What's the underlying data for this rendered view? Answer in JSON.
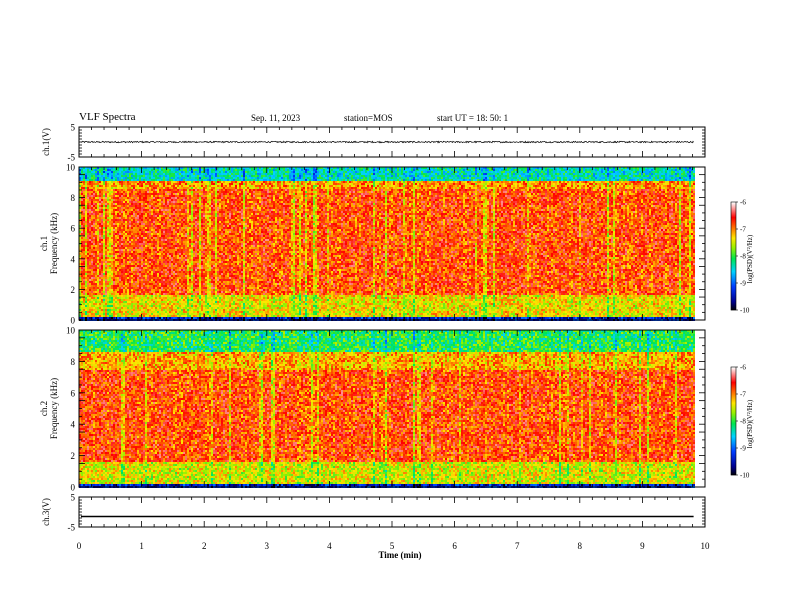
{
  "header": {
    "title": "VLF Spectra",
    "date": "Sep. 11, 2023",
    "station": "station=MOS",
    "start": "start  UT =   18: 50: 1"
  },
  "chart_data": [
    {
      "type": "line",
      "panel": "ch1-waveform",
      "ylabel": "ch.1(V)",
      "ylim": [
        -5,
        5
      ],
      "yticks": [
        "5",
        "-5"
      ],
      "xlim": [
        0,
        10
      ],
      "series": [
        {
          "level": 0.0,
          "amplitude": 0.25
        }
      ]
    },
    {
      "type": "heatmap",
      "panel": "ch1-spectrogram",
      "ylabel": "ch.1\nFrequency (kHz)",
      "ylim": [
        0,
        10
      ],
      "yticks": [
        "0",
        "2",
        "4",
        "6",
        "8",
        "10"
      ],
      "xlim": [
        0,
        9.82
      ],
      "colorbar": {
        "label": "log(PSD)(V²/Hz)",
        "range": [
          -10,
          -6
        ],
        "ticks": [
          "-6",
          "-7",
          "-8",
          "-9",
          "-10"
        ]
      },
      "bands": [
        {
          "from": 0.0,
          "to": 0.3,
          "level": -9.3
        },
        {
          "from": 0.3,
          "to": 1.7,
          "level": -7.3
        },
        {
          "from": 1.7,
          "to": 8.6,
          "level": -6.7
        },
        {
          "from": 8.6,
          "to": 9.1,
          "level": -7.0
        },
        {
          "from": 9.1,
          "to": 10.0,
          "level": -8.3
        }
      ]
    },
    {
      "type": "heatmap",
      "panel": "ch2-spectrogram",
      "ylabel": "ch.2\nFrequency (kHz)",
      "ylim": [
        0,
        10
      ],
      "yticks": [
        "0",
        "2",
        "4",
        "6",
        "8",
        "10"
      ],
      "xlim": [
        0,
        9.82
      ],
      "colorbar": {
        "label": "log(PSD)(V²/Hz)",
        "range": [
          -10,
          -6
        ],
        "ticks": [
          "-6",
          "-7",
          "-8",
          "-9",
          "-10"
        ]
      },
      "bands": [
        {
          "from": 0.0,
          "to": 0.3,
          "level": -9.3
        },
        {
          "from": 0.3,
          "to": 1.7,
          "level": -7.4
        },
        {
          "from": 1.7,
          "to": 7.5,
          "level": -6.7
        },
        {
          "from": 7.5,
          "to": 8.6,
          "level": -7.1
        },
        {
          "from": 8.6,
          "to": 10.0,
          "level": -8.0
        }
      ]
    },
    {
      "type": "line",
      "panel": "ch3-waveform",
      "ylabel": "ch.3(V)",
      "ylim": [
        -5,
        5
      ],
      "yticks": [
        "5",
        "-5"
      ],
      "xlim": [
        0,
        10
      ],
      "xlabel": "Time (min)",
      "xticks": [
        "0",
        "1",
        "2",
        "3",
        "4",
        "5",
        "6",
        "7",
        "8",
        "9",
        "10"
      ],
      "series": [
        {
          "level": -1.5,
          "amplitude": 0.0
        }
      ]
    }
  ],
  "colors": {
    "axis": "#000000",
    "background": "#ffffff"
  }
}
